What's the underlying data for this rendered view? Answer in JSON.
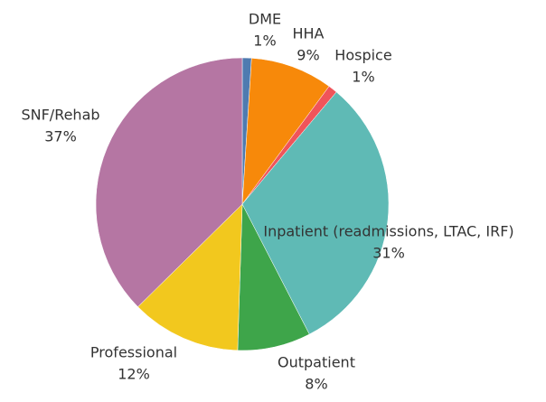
{
  "chart_data": {
    "type": "pie",
    "categories": [
      "DME",
      "HHA",
      "Hospice",
      "Inpatient (readmissions, LTAC, IRF)",
      "Outpatient",
      "Professional",
      "SNF/Rehab"
    ],
    "values": [
      1,
      9,
      1,
      31,
      8,
      12,
      37
    ],
    "value_labels": [
      "1%",
      "9%",
      "1%",
      "31%",
      "8%",
      "12%",
      "37%"
    ],
    "colors": [
      "#4f7bb0",
      "#f7890a",
      "#f0545a",
      "#5fbab5",
      "#3ea54a",
      "#f2c81e",
      "#b576a3"
    ]
  }
}
